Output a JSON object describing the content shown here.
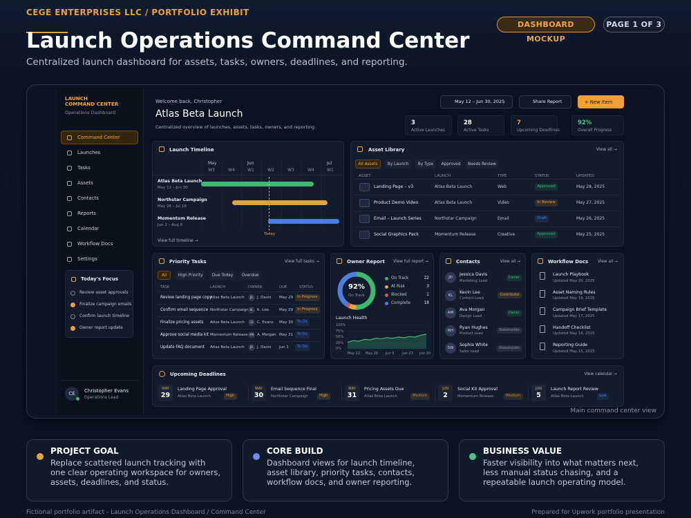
{
  "header": {
    "eyebrow": "CEGE ENTERPRISES LLC / PORTFOLIO EXHIBIT",
    "title": "Launch Operations Command Center",
    "subtitle": "Centralized launch dashboard for assets, tasks, owners, deadlines, and reporting.",
    "badges": [
      "DASHBOARD MOCKUP",
      "PAGE 1 OF 3"
    ]
  },
  "sidebar": {
    "brand_lines": [
      "LAUNCH",
      "COMMAND CENTER"
    ],
    "brand_sub": "Operations Dashboard",
    "active": 0,
    "nav": [
      "Command Center",
      "Launches",
      "Tasks",
      "Assets",
      "Contacts",
      "Reports",
      "Calendar",
      "Workflow Docs",
      "Settings"
    ],
    "focus_title": "Today's Focus",
    "focus_items": [
      {
        "text": "Review asset approvals",
        "done": false
      },
      {
        "text": "Finalize campaign emails",
        "done": true
      },
      {
        "text": "Confirm launch timeline",
        "done": false
      },
      {
        "text": "Owner report update",
        "done": true
      }
    ],
    "user": {
      "initials": "CE",
      "name": "Christopher Evans",
      "role": "Operations Lead"
    }
  },
  "topbar": {
    "welcome": "Welcome back, Christopher",
    "project": "Atlas Beta Launch",
    "description": "Centralized overview of launches, assets, tasks, owners, and reporting.",
    "date_range": "May 12 – Jun 30, 2025",
    "share": "Share Report",
    "new_item": "+  New Item",
    "stats": [
      {
        "value": 3,
        "label": "Active Launches",
        "color": "#ffffff"
      },
      {
        "value": 28,
        "label": "Active Tasks",
        "color": "#ffffff"
      },
      {
        "value": 7,
        "label": "Upcoming Deadlines",
        "color": "#f0a540"
      },
      {
        "value": "92%",
        "label": "Overall Progress",
        "color": "#4cc38a"
      }
    ]
  },
  "tones": {
    "Approved": "#3fb872",
    "In Review": "#e8a23a",
    "Draft": "#4d7fe0",
    "In Progress": "#e8a23a",
    "To Do": "#4d7fe0",
    "Owner": "#3fb872",
    "Contributor": "#e8a23a",
    "Stakeholder": "#8a94a6",
    "High": "#e8a23a",
    "Medium": "#c98a2e",
    "Low": "#4d7fe0"
  },
  "timeline": {
    "title": "Launch Timeline",
    "months": [
      "May",
      "Jun",
      "Jul"
    ],
    "weeks": [
      "W3",
      "W4",
      "W1",
      "W2",
      "W3",
      "W4",
      "W1"
    ],
    "rows": [
      {
        "name": "Atlas Beta Launch",
        "dates": "May 12 – Jun 30",
        "color": "#3fb872"
      },
      {
        "name": "Northstar Campaign",
        "dates": "May 26 – Jul 18",
        "color": "#d9a441"
      },
      {
        "name": "Momentum Release",
        "dates": "Jun 2 – Aug 8",
        "color": "#4d7fe0"
      }
    ],
    "today": "Today",
    "link": "View full timeline →"
  },
  "assets": {
    "title": "Asset Library",
    "link": "View all →",
    "tabs": [
      "All Assets",
      "By Launch",
      "By Type",
      "Approved",
      "Needs Review"
    ],
    "columns": [
      "ASSET",
      "LAUNCH",
      "TYPE",
      "STATUS",
      "UPDATED"
    ],
    "rows": [
      [
        "Landing Page – v3",
        "Atlas Beta Launch",
        "Web",
        "Approved",
        "May 28, 2025"
      ],
      [
        "Product Demo Video",
        "Atlas Beta Launch",
        "Video",
        "In Review",
        "May 27, 2025"
      ],
      [
        "Email – Launch Series",
        "Northstar Campaign",
        "Email",
        "Draft",
        "May 26, 2025"
      ],
      [
        "Social Graphics Pack",
        "Momentum Release",
        "Creative",
        "Approved",
        "May 25, 2025"
      ]
    ]
  },
  "tasks": {
    "title": "Priority Tasks",
    "link": "View full tasks →",
    "tabs": [
      "All",
      "High Priority",
      "Due Today",
      "Overdue"
    ],
    "columns": [
      "TASK",
      "LAUNCH",
      "OWNER",
      "DUE",
      "STATUS"
    ],
    "rows": [
      [
        "Review landing page copy",
        "Atlas Beta Launch",
        "JD",
        "J. Davis",
        "May 29",
        "In Progress"
      ],
      [
        "Confirm email sequence",
        "Northstar Campaign",
        "KL",
        "K. Lee",
        "May 29",
        "In Progress"
      ],
      [
        "Finalize pricing assets",
        "Atlas Beta Launch",
        "CE",
        "C. Evans",
        "May 30",
        "To Do"
      ],
      [
        "Approve social media kit",
        "Momentum Release",
        "AM",
        "A. Morgan",
        "May 31",
        "To Do"
      ],
      [
        "Update FAQ document",
        "Atlas Beta Launch",
        "JD",
        "J. Davis",
        "Jun 1",
        "To Do"
      ]
    ]
  },
  "owner_report": {
    "title": "Owner Report",
    "link": "View full report →",
    "center_value": "92%",
    "center_label": "On Track",
    "series": [
      {
        "name": "On Track",
        "value": 22,
        "color": "#3fb872"
      },
      {
        "name": "At Risk",
        "value": 3,
        "color": "#e8a23a"
      },
      {
        "name": "Blocked",
        "value": 1,
        "color": "#e05252"
      },
      {
        "name": "Complete",
        "value": 18,
        "color": "#4d7fe0"
      }
    ],
    "health": {
      "title": "Launch Health",
      "values": [
        28,
        35,
        32,
        40,
        38,
        45,
        42,
        48,
        44,
        50,
        47,
        52,
        50,
        58,
        62
      ],
      "ylim": [
        0,
        100
      ],
      "yticks": [
        {
          "value": 100,
          "label": "100%"
        },
        {
          "value": 75,
          "label": "75%"
        },
        {
          "value": 50,
          "label": "50%"
        },
        {
          "value": 25,
          "label": "25%"
        },
        {
          "value": 0,
          "label": "0%"
        }
      ],
      "x_labels": [
        "May 12",
        "May 26",
        "Jun 9",
        "Jun 23",
        "Jun 30"
      ],
      "color": "#3fb872"
    }
  },
  "contacts": {
    "title": "Contacts",
    "link": "View all →",
    "rows": [
      {
        "initials": "JD",
        "name": "Jessica Davis",
        "role": "Marketing Lead",
        "tag": "Owner"
      },
      {
        "initials": "KL",
        "name": "Kevin Lee",
        "role": "Content Lead",
        "tag": "Contributor"
      },
      {
        "initials": "AM",
        "name": "Ava Morgan",
        "role": "Design Lead",
        "tag": "Owner"
      },
      {
        "initials": "RH",
        "name": "Ryan Hughes",
        "role": "Product Lead",
        "tag": "Stakeholder"
      },
      {
        "initials": "SW",
        "name": "Sophia White",
        "role": "Sales Lead",
        "tag": "Stakeholder"
      }
    ]
  },
  "docs": {
    "title": "Workflow Docs",
    "link": "View all →",
    "rows": [
      {
        "name": "Launch Playbook",
        "updated": "Updated May 20, 2025"
      },
      {
        "name": "Asset Naming Rules",
        "updated": "Updated May 18, 2025"
      },
      {
        "name": "Campaign Brief Template",
        "updated": "Updated May 17, 2025"
      },
      {
        "name": "Handoff Checklist",
        "updated": "Updated May 16, 2025"
      },
      {
        "name": "Reporting Guide",
        "updated": "Updated May 15, 2025"
      }
    ]
  },
  "deadlines": {
    "title": "Upcoming Deadlines",
    "link": "View calendar →",
    "items": [
      {
        "month": "MAY",
        "day": 29,
        "name": "Landing Page Approval",
        "launch": "Atlas Beta Launch",
        "priority": "High"
      },
      {
        "month": "MAY",
        "day": 30,
        "name": "Email Sequence Final",
        "launch": "Northstar Campaign",
        "priority": "High"
      },
      {
        "month": "MAY",
        "day": 31,
        "name": "Pricing Assets Due",
        "launch": "Atlas Beta Launch",
        "priority": "Medium"
      },
      {
        "month": "JUN",
        "day": 2,
        "name": "Social Kit Approval",
        "launch": "Momentum Release",
        "priority": "Medium"
      },
      {
        "month": "JUN",
        "day": 5,
        "name": "Launch Report Review",
        "launch": "Atlas Beta Launch",
        "priority": "Low"
      }
    ]
  },
  "caption": "Main command center view",
  "cards": [
    {
      "title": "PROJECT GOAL",
      "body": "Replace scattered launch tracking with one clear operating workspace for owners, assets, deadlines, and status.",
      "color": "#e8a23a"
    },
    {
      "title": "CORE BUILD",
      "body": "Dashboard views for launch timeline, asset library, priority tasks, contacts, workflow docs, and owner reporting.",
      "color": "#6b8cef"
    },
    {
      "title": "BUSINESS VALUE",
      "body": "Faster visibility into what matters next, less manual status chasing, and a repeatable launch operating model.",
      "color": "#4cc38a"
    }
  ],
  "footer": {
    "left": "Fictional portfolio artifact - Launch Operations Dashboard / Command Center",
    "right": "Prepared for Upwork portfolio presentation"
  }
}
